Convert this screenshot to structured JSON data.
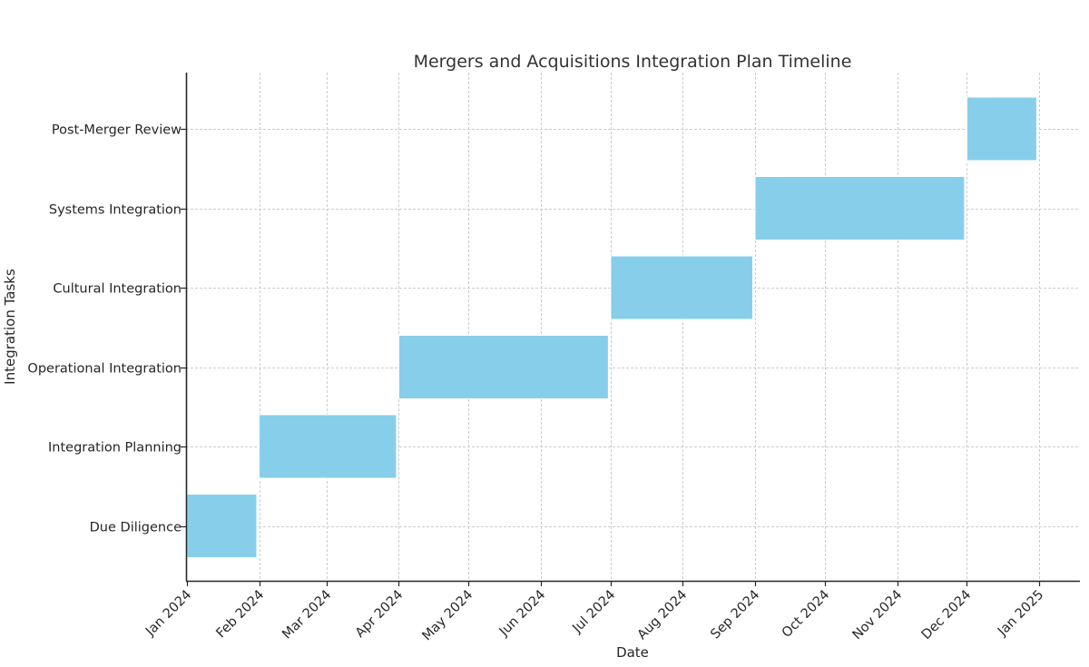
{
  "chart_data": {
    "type": "gantt",
    "title": "Mergers and Acquisitions Integration Plan Timeline",
    "xlabel": "Date",
    "ylabel": "Integration Tasks",
    "x_tick_labels": [
      "Jan 2024",
      "Feb 2024",
      "Mar 2024",
      "Apr 2024",
      "May 2024",
      "Jun 2024",
      "Jul 2024",
      "Aug 2024",
      "Sep 2024",
      "Oct 2024",
      "Nov 2024",
      "Dec 2024",
      "Jan 2025"
    ],
    "x_ticks": [
      "2024-01-01",
      "2024-02-01",
      "2024-03-01",
      "2024-04-01",
      "2024-05-01",
      "2024-06-01",
      "2024-07-01",
      "2024-08-01",
      "2024-09-01",
      "2024-10-01",
      "2024-11-01",
      "2024-12-01",
      "2025-01-01"
    ],
    "xlim": [
      "2024-01-01",
      "2025-01-19"
    ],
    "grid": true,
    "bar_color": "#87CEEB",
    "tasks": [
      {
        "name": "Due Diligence",
        "start": "2024-01-01",
        "end": "2024-01-31"
      },
      {
        "name": "Integration Planning",
        "start": "2024-02-01",
        "end": "2024-03-31"
      },
      {
        "name": "Operational Integration",
        "start": "2024-04-01",
        "end": "2024-06-30"
      },
      {
        "name": "Cultural Integration",
        "start": "2024-07-01",
        "end": "2024-08-31"
      },
      {
        "name": "Systems Integration",
        "start": "2024-09-01",
        "end": "2024-11-30"
      },
      {
        "name": "Post-Merger Review",
        "start": "2024-12-01",
        "end": "2024-12-31"
      }
    ]
  }
}
